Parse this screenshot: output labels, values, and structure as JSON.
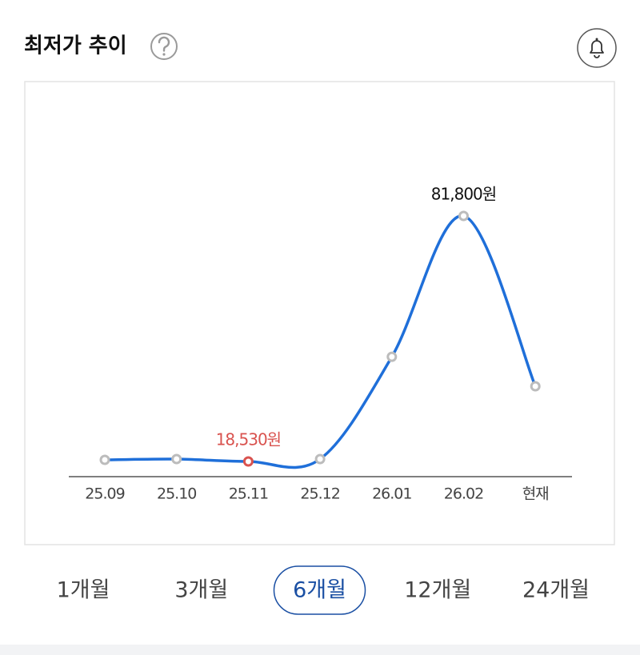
{
  "header": {
    "title": "최저가 추이"
  },
  "chart_data": {
    "type": "line",
    "categories": [
      "25.09",
      "25.10",
      "25.11",
      "25.12",
      "26.01",
      "26.02",
      "현재"
    ],
    "values": [
      18940,
      19150,
      18530,
      19150,
      45500,
      81800,
      37900
    ],
    "value_labels": [
      null,
      null,
      "18,530원",
      null,
      null,
      "81,800원",
      null
    ],
    "color": "#1f6fd9",
    "point_color": "#bcbcbc",
    "min_color": "#d9534f"
  },
  "periods": {
    "options": [
      "1개월",
      "3개월",
      "6개월",
      "12개월",
      "24개월"
    ],
    "selected": 2
  }
}
